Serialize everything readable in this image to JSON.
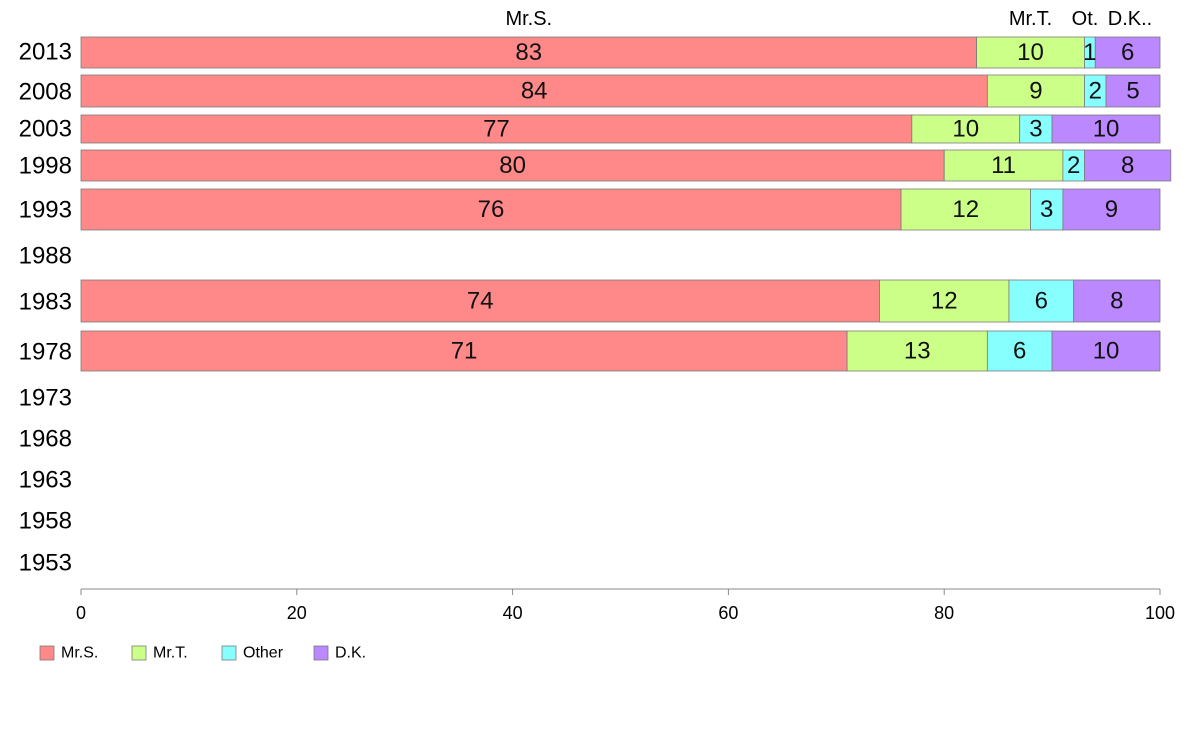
{
  "chart_data": {
    "type": "bar",
    "orientation": "horizontal",
    "stacked": true,
    "categories": [
      "2013",
      "2008",
      "2003",
      "1998",
      "1993",
      "1988",
      "1983",
      "1978",
      "1973",
      "1968",
      "1963",
      "1958",
      "1953"
    ],
    "series": [
      {
        "name": "Mr.S.",
        "color": "#ff8888",
        "values": [
          83,
          84,
          77,
          80,
          76,
          null,
          74,
          71,
          null,
          null,
          null,
          null,
          null
        ]
      },
      {
        "name": "Mr.T.",
        "color": "#ccff88",
        "values": [
          10,
          9,
          10,
          11,
          12,
          null,
          12,
          13,
          null,
          null,
          null,
          null,
          null
        ]
      },
      {
        "name": "Other",
        "color": "#88ffff",
        "values": [
          1,
          2,
          3,
          2,
          3,
          null,
          6,
          6,
          null,
          null,
          null,
          null,
          null
        ]
      },
      {
        "name": "D.K.",
        "color": "#bb88ff",
        "values": [
          6,
          5,
          10,
          8,
          9,
          null,
          8,
          10,
          null,
          null,
          null,
          null,
          null
        ]
      }
    ],
    "top_labels": [
      "Mr.S.",
      "Mr.T.",
      "Ot.",
      "D.K.."
    ],
    "xlim": [
      0,
      100
    ],
    "xticks": [
      0,
      20,
      40,
      60,
      80,
      100
    ],
    "grid": false,
    "legend_position": "bottom-left"
  }
}
